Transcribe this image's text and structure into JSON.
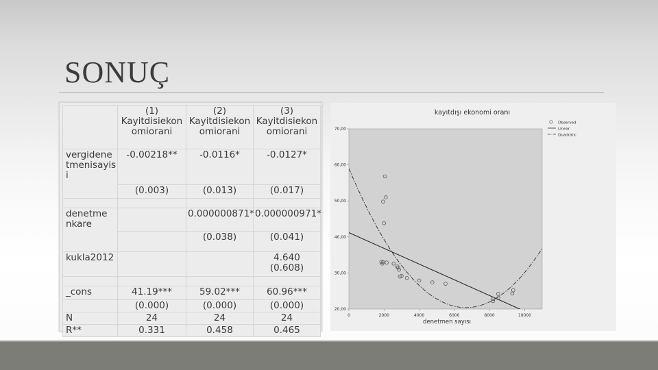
{
  "slide": {
    "title": "SONUÇ"
  },
  "table": {
    "columns": [
      {
        "num": "(1)",
        "l1": "Kayitdisiekon",
        "l2": "omiorani"
      },
      {
        "num": "(2)",
        "l1": "Kayitdisiekon",
        "l2": "omiorani"
      },
      {
        "num": "(3)",
        "l1": "Kayitdisiekon",
        "l2": "omiorani"
      }
    ],
    "rows": {
      "vergi": {
        "label_1": "vergidene",
        "label_2": "tmenisayis",
        "label_3": "i",
        "coef": [
          "-0.00218**",
          "-0.0116*",
          "-0.0127*"
        ],
        "p": [
          "(0.003)",
          "(0.013)",
          "(0.017)"
        ]
      },
      "denetme": {
        "label_1": "denetme",
        "label_2": "nkare",
        "coef": [
          "",
          "0.000000871*",
          "0.000000971*"
        ],
        "p": [
          "",
          "(0.038)",
          "(0.041)"
        ]
      },
      "kukla": {
        "label": "kukla2012",
        "coef": [
          "",
          "",
          "4.640"
        ],
        "p": [
          "",
          "",
          "(0.608)"
        ]
      },
      "cons": {
        "label": "_cons",
        "coef": [
          "41.19***",
          "59.02***",
          "60.96***"
        ],
        "p": [
          "(0.000)",
          "(0.000)",
          "(0.000)"
        ]
      },
      "n": {
        "label": "N",
        "values": [
          "24",
          "24",
          "24"
        ]
      },
      "r2": {
        "label": "R**",
        "values": [
          "0.331",
          "0.458",
          "0.465"
        ]
      }
    }
  },
  "chart_data": {
    "type": "scatter",
    "title": "kayıtdışı ekonomi oranı",
    "xlabel": "denetmen sayısı",
    "ylabel": "",
    "xlim": [
      0,
      11000
    ],
    "ylim": [
      20,
      70
    ],
    "x_ticks": [
      "0",
      "2000",
      "4000",
      "6000",
      "8000",
      "10000"
    ],
    "y_ticks": [
      "20,00",
      "30,00",
      "40,00",
      "50,00",
      "60,00",
      "70,00"
    ],
    "legend": [
      "Observed",
      "Linear",
      "Quadratic"
    ],
    "legend_position": "top-right",
    "grid": false,
    "points": [
      {
        "x": 2050,
        "y": 56.8
      },
      {
        "x": 2100,
        "y": 51.0
      },
      {
        "x": 1950,
        "y": 49.8
      },
      {
        "x": 2000,
        "y": 43.8
      },
      {
        "x": 1850,
        "y": 33.1
      },
      {
        "x": 1950,
        "y": 33.0
      },
      {
        "x": 1900,
        "y": 32.6
      },
      {
        "x": 2150,
        "y": 32.9
      },
      {
        "x": 2550,
        "y": 32.6
      },
      {
        "x": 2750,
        "y": 31.8
      },
      {
        "x": 2850,
        "y": 30.9
      },
      {
        "x": 2800,
        "y": 31.5
      },
      {
        "x": 2900,
        "y": 29.0
      },
      {
        "x": 3000,
        "y": 29.2
      },
      {
        "x": 3300,
        "y": 28.6
      },
      {
        "x": 4000,
        "y": 27.9
      },
      {
        "x": 4750,
        "y": 27.4
      },
      {
        "x": 5500,
        "y": 27.0
      },
      {
        "x": 8200,
        "y": 22.2
      },
      {
        "x": 8200,
        "y": 22.8
      },
      {
        "x": 8500,
        "y": 24.2
      },
      {
        "x": 8500,
        "y": 23.0
      },
      {
        "x": 9300,
        "y": 24.3
      },
      {
        "x": 9350,
        "y": 25.2
      }
    ],
    "linear_fit": {
      "intercept": 41.19,
      "slope": -0.00218
    },
    "quadratic_fit": {
      "intercept": 59.02,
      "b1": -0.0116,
      "b2": 8.71e-07
    },
    "colors": {
      "line": "#2b2b2b",
      "point": "#555555"
    }
  }
}
